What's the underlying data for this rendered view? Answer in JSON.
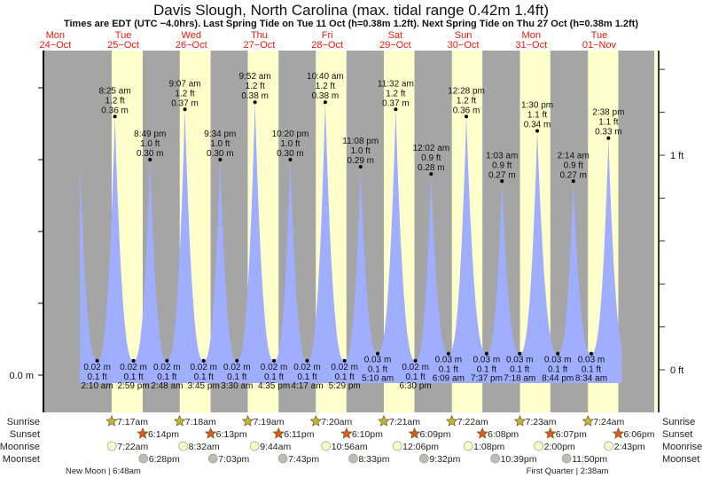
{
  "chart_data": {
    "type": "area",
    "title": "Davis Slough, North Carolina (max. tidal range 0.42m 1.4ft)",
    "subtitle": "Times are EDT (UTC −4.0hrs). Last Spring Tide on Tue 11 Oct (h=0.38m 1.2ft). Next Spring Tide on Thu 27 Oct (h=0.38m 1.2ft)",
    "days": [
      {
        "dow": "Mon",
        "date": "24−Oct"
      },
      {
        "dow": "Tue",
        "date": "25−Oct"
      },
      {
        "dow": "Wed",
        "date": "26−Oct"
      },
      {
        "dow": "Thu",
        "date": "27−Oct"
      },
      {
        "dow": "Fri",
        "date": "28−Oct"
      },
      {
        "dow": "Sat",
        "date": "29−Oct"
      },
      {
        "dow": "Sun",
        "date": "30−Oct"
      },
      {
        "dow": "Mon",
        "date": "31−Oct"
      },
      {
        "dow": "Tue",
        "date": "01−Nov"
      }
    ],
    "y_left": {
      "label_zero": "0.0 m",
      "ticks_m": [
        0,
        0.1,
        0.2,
        0.3,
        0.4
      ]
    },
    "y_right": {
      "labels": [
        {
          "ft": 0,
          "text": "0 ft"
        },
        {
          "ft": 1,
          "text": "1 ft"
        }
      ],
      "ticks_ft": [
        0,
        0.2,
        0.4,
        0.6,
        0.8,
        1,
        1.2,
        1.4
      ]
    },
    "extremes": [
      {
        "day": 1,
        "time": "2:10 am",
        "type": "low",
        "m": 0.02,
        "ft": "0.1 ft",
        "mtxt": "0.02 m"
      },
      {
        "day": 1,
        "time": "8:25 am",
        "type": "high",
        "m": 0.36,
        "ft": "1.2 ft",
        "mtxt": "0.36 m"
      },
      {
        "day": 1,
        "time": "2:59 pm",
        "type": "low",
        "m": 0.02,
        "ft": "0.1 ft",
        "mtxt": "0.02 m"
      },
      {
        "day": 1,
        "time": "8:49 pm",
        "type": "high",
        "m": 0.3,
        "ft": "1.0 ft",
        "mtxt": "0.30 m"
      },
      {
        "day": 2,
        "time": "2:48 am",
        "type": "low",
        "m": 0.02,
        "ft": "0.1 ft",
        "mtxt": "0.02 m"
      },
      {
        "day": 2,
        "time": "9:07 am",
        "type": "high",
        "m": 0.37,
        "ft": "1.2 ft",
        "mtxt": "0.37 m"
      },
      {
        "day": 2,
        "time": "3:45 pm",
        "type": "low",
        "m": 0.02,
        "ft": "0.1 ft",
        "mtxt": "0.02 m"
      },
      {
        "day": 2,
        "time": "9:34 pm",
        "type": "high",
        "m": 0.3,
        "ft": "1.0 ft",
        "mtxt": "0.30 m"
      },
      {
        "day": 3,
        "time": "3:30 am",
        "type": "low",
        "m": 0.02,
        "ft": "0.1 ft",
        "mtxt": "0.02 m"
      },
      {
        "day": 3,
        "time": "9:52 am",
        "type": "high",
        "m": 0.38,
        "ft": "1.2 ft",
        "mtxt": "0.38 m"
      },
      {
        "day": 3,
        "time": "4:35 pm",
        "type": "low",
        "m": 0.02,
        "ft": "0.1 ft",
        "mtxt": "0.02 m"
      },
      {
        "day": 3,
        "time": "10:20 pm",
        "type": "high",
        "m": 0.3,
        "ft": "1.0 ft",
        "mtxt": "0.30 m"
      },
      {
        "day": 4,
        "time": "4:17 am",
        "type": "low",
        "m": 0.02,
        "ft": "0.1 ft",
        "mtxt": "0.02 m"
      },
      {
        "day": 4,
        "time": "10:40 am",
        "type": "high",
        "m": 0.38,
        "ft": "1.2 ft",
        "mtxt": "0.38 m"
      },
      {
        "day": 4,
        "time": "5:29 pm",
        "type": "low",
        "m": 0.02,
        "ft": "0.1 ft",
        "mtxt": "0.02 m"
      },
      {
        "day": 4,
        "time": "11:08 pm",
        "type": "high",
        "m": 0.29,
        "ft": "1.0 ft",
        "mtxt": "0.29 m"
      },
      {
        "day": 5,
        "time": "5:10 am",
        "type": "low",
        "m": 0.03,
        "ft": "0.1 ft",
        "mtxt": "0.03 m"
      },
      {
        "day": 5,
        "time": "11:32 am",
        "type": "high",
        "m": 0.37,
        "ft": "1.2 ft",
        "mtxt": "0.37 m"
      },
      {
        "day": 5,
        "time": "6:30 pm",
        "type": "low",
        "m": 0.02,
        "ft": "0.1 ft",
        "mtxt": "0.02 m"
      },
      {
        "day": 6,
        "time": "12:02 am",
        "type": "high",
        "m": 0.28,
        "ft": "0.9 ft",
        "mtxt": "0.28 m"
      },
      {
        "day": 6,
        "time": "6:09 am",
        "type": "low",
        "m": 0.03,
        "ft": "0.1 ft",
        "mtxt": "0.03 m"
      },
      {
        "day": 6,
        "time": "12:28 pm",
        "type": "high",
        "m": 0.36,
        "ft": "1.2 ft",
        "mtxt": "0.36 m"
      },
      {
        "day": 6,
        "time": "7:37 pm",
        "type": "low",
        "m": 0.03,
        "ft": "0.1 ft",
        "mtxt": "0.03 m"
      },
      {
        "day": 7,
        "time": "1:03 am",
        "type": "high",
        "m": 0.27,
        "ft": "0.9 ft",
        "mtxt": "0.27 m"
      },
      {
        "day": 7,
        "time": "7:18 am",
        "type": "low",
        "m": 0.03,
        "ft": "0.1 ft",
        "mtxt": "0.03 m"
      },
      {
        "day": 7,
        "time": "1:30 pm",
        "type": "high",
        "m": 0.34,
        "ft": "1.1 ft",
        "mtxt": "0.34 m"
      },
      {
        "day": 7,
        "time": "8:44 pm",
        "type": "low",
        "m": 0.03,
        "ft": "0.1 ft",
        "mtxt": "0.03 m"
      },
      {
        "day": 8,
        "time": "2:14 am",
        "type": "high",
        "m": 0.27,
        "ft": "0.9 ft",
        "mtxt": "0.27 m"
      },
      {
        "day": 8,
        "time": "8:34 am",
        "type": "low",
        "m": 0.03,
        "ft": "0.1 ft",
        "mtxt": "0.03 m"
      },
      {
        "day": 8,
        "time": "2:38 pm",
        "type": "high",
        "m": 0.33,
        "ft": "1.1 ft",
        "mtxt": "0.33 m"
      }
    ],
    "astro": {
      "labels": {
        "sunrise": "Sunrise",
        "sunset": "Sunset",
        "moonrise": "Moonrise",
        "moonset": "Moonset"
      },
      "sunrise": [
        "7:17am",
        "7:18am",
        "7:19am",
        "7:20am",
        "7:21am",
        "7:22am",
        "7:23am",
        "7:24am"
      ],
      "sunset": [
        "6:14pm",
        "6:13pm",
        "6:11pm",
        "6:10pm",
        "6:09pm",
        "6:08pm",
        "6:07pm",
        "6:06pm"
      ],
      "moonrise": [
        "7:22am",
        "8:32am",
        "9:44am",
        "10:56am",
        "12:06pm",
        "1:08pm",
        "2:00pm",
        "2:43pm"
      ],
      "moonset": [
        "6:28pm",
        "7:03pm",
        "7:43pm",
        "8:33pm",
        "9:32pm",
        "10:39pm",
        "11:50pm"
      ],
      "phases": [
        {
          "day": 1,
          "time": "6:48am",
          "text": "New Moon | 6:48am"
        },
        {
          "day": 8,
          "time": "2:38am",
          "text": "First Quarter | 2:38am"
        }
      ]
    },
    "colors": {
      "night": "#a5a5a5",
      "day": "#ffffcc",
      "water": "#a0aeff",
      "day_label": "#e8180c",
      "sunrise": "#c3b53a",
      "sunset": "#dd5a22",
      "moonrise": "#ffffc8",
      "moonset": "#bdbdb0"
    }
  }
}
